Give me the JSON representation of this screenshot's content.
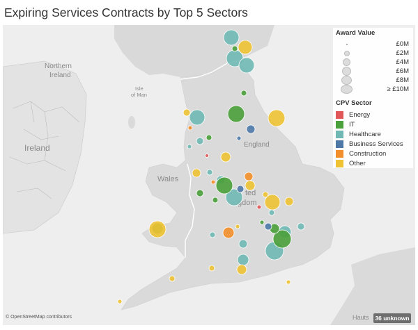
{
  "title": "Expiring Services Contracts by Top 5 Sectors",
  "map_labels": {
    "northern_ireland_line1": "Northern",
    "northern_ireland_line2": "Ireland",
    "isle_of_man_line1": "Isle",
    "isle_of_man_line2": "of Man",
    "ireland": "Ireland",
    "wales": "Wales",
    "england": "England",
    "united_kingdom_line1": "ted",
    "united_kingdom_line2": "gdom",
    "hauts": "Hauts"
  },
  "legend": {
    "award_title": "Award Value",
    "award_sizes": [
      {
        "label": "£0M",
        "value_m": 0
      },
      {
        "label": "£2M",
        "value_m": 2
      },
      {
        "label": "£4M",
        "value_m": 4
      },
      {
        "label": "£6M",
        "value_m": 6
      },
      {
        "label": "£8M",
        "value_m": 8
      },
      {
        "label": "≥ £10M",
        "value_m": 10
      }
    ],
    "sector_title": "CPV Sector",
    "sectors": [
      {
        "label": "Energy",
        "color": "#e15759"
      },
      {
        "label": "IT",
        "color": "#4aa03a"
      },
      {
        "label": "Healthcare",
        "color": "#6fb8b3"
      },
      {
        "label": "Business Services",
        "color": "#4e79a7"
      },
      {
        "label": "Construction",
        "color": "#f28e2b"
      },
      {
        "label": "Other",
        "color": "#eec233"
      }
    ]
  },
  "attribution": "© OpenStreetMap contributors",
  "unknown_badge": "36 unknown",
  "colors": {
    "water": "#eeeeee",
    "land": "#dadada",
    "ireland_land": "#e6e6e6",
    "border": "#ffffff"
  }
}
